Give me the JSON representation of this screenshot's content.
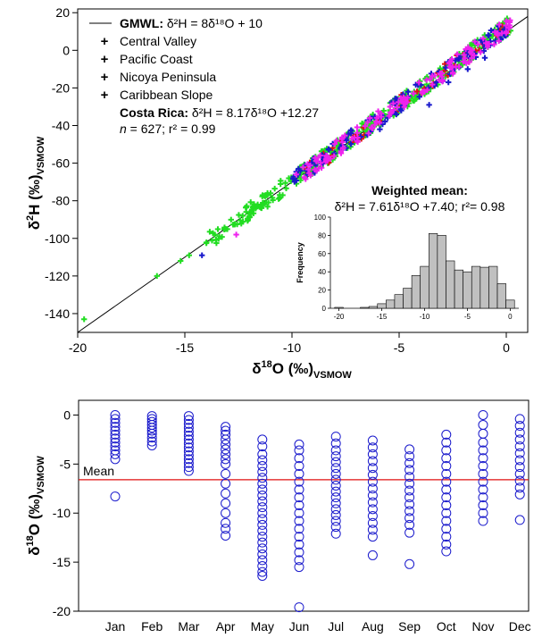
{
  "top_chart": {
    "ylabel_delta": "δ",
    "ylabel_sup": "2",
    "ylabel_main": "H (‰)",
    "ylabel_sub": "VSMOW",
    "xlabel_delta": "δ",
    "xlabel_sup": "18",
    "xlabel_main": "O (‰)",
    "xlabel_sub": "VSMOW",
    "legend": {
      "gmwl_bold": "GMWL:",
      "gmwl_eq": "δ²H = 8δ¹⁸O + 10",
      "central_valley": "Central Valley",
      "pacific_coast": "Pacific Coast",
      "nicoya": "Nicoya Peninsula",
      "caribbean": "Caribbean Slope",
      "costa_rica_bold": "Costa Rica:",
      "costa_rica_eq": "δ²H = 8.17δ¹⁸O +12.27",
      "n_label": "n",
      "stats": " = 627; r² = 0.99"
    },
    "weighted_title": "Weighted mean:",
    "weighted_eq": "δ²H = 7.61δ¹⁸O +7.40; r²= 0.98",
    "inset_ylabel": "Frequency",
    "x_ticks": [
      "-20",
      "-15",
      "-10",
      "-5",
      "0"
    ],
    "y_ticks": [
      "20",
      "0",
      "-20",
      "-40",
      "-60",
      "-80",
      "-100",
      "-120",
      "-140"
    ],
    "inset_x_ticks": [
      "-20",
      "-15",
      "-10",
      "-5",
      "0"
    ],
    "inset_y_ticks": [
      "100",
      "80",
      "60",
      "40",
      "20",
      "0"
    ]
  },
  "bottom_chart": {
    "ylabel_delta": "δ",
    "ylabel_sup": "18",
    "ylabel_main": "O (‰)",
    "ylabel_sub": "VSMOW",
    "mean_label": "Mean",
    "y_ticks": [
      "0",
      "-5",
      "-10",
      "-15",
      "-20"
    ],
    "months": [
      "Jan",
      "Feb",
      "Mar",
      "Apr",
      "May",
      "Jun",
      "Jul",
      "Aug",
      "Sep",
      "Oct",
      "Nov",
      "Dec"
    ]
  },
  "colors": {
    "central_valley": "#22dd22",
    "pacific_coast": "#dd1111",
    "nicoya": "#1a1acc",
    "caribbean": "#ee22ee",
    "open_circle": "#1a1acc",
    "mean_line": "#e01010",
    "histogram_bar": "#c0c0c0"
  },
  "chart_data": [
    {
      "type": "scatter",
      "xlim": [
        -20,
        1
      ],
      "ylim": [
        -150,
        22
      ],
      "reference_line": {
        "name": "GMWL",
        "slope": 8,
        "intercept": 10
      },
      "fit": {
        "name": "Costa Rica",
        "slope": 8.17,
        "intercept": 12.27,
        "n": 627,
        "r2": 0.99
      },
      "series": [
        {
          "name": "Central Valley",
          "x": [
            -19.7,
            -16.3,
            -15.2,
            -14.8,
            -13.1,
            -12.3,
            -11.8,
            -11.0,
            -10.0,
            -9.1,
            -8.2,
            -7.4,
            -6.6,
            -5.6,
            -4.3,
            -3.1,
            -2.2,
            -1.4,
            -0.9,
            -0.5,
            -11.6,
            -13.6,
            -9.6
          ],
          "y": [
            -143,
            -120,
            -112,
            -109,
            -95,
            -88,
            -84,
            -76,
            -68,
            -61,
            -53,
            -47,
            -42,
            -35,
            -22,
            -14,
            -6,
            -1,
            5,
            9,
            -82,
            -98,
            -62
          ]
        },
        {
          "name": "Pacific Coast",
          "x": [
            -9.3,
            -8.1,
            -6.0,
            -4.6,
            -2.4,
            -0.3,
            -7.0,
            -3.0
          ],
          "y": [
            -63,
            -52,
            -38,
            -27,
            -8,
            11,
            -45,
            -14
          ]
        },
        {
          "name": "Nicoya Peninsula",
          "x": [
            -14.2,
            -9.6,
            -8.9,
            -7.6,
            -6.8,
            -5.9,
            -4.9,
            -3.6,
            -2.7,
            -1.8,
            -1.0,
            -0.1,
            -5.2,
            -2.2
          ],
          "y": [
            -109,
            -64,
            -61,
            -52,
            -46,
            -42,
            -32,
            -29,
            -17,
            -10,
            -4,
            8,
            -33,
            -9
          ]
        },
        {
          "name": "Caribbean Slope",
          "x": [
            -12.6,
            -9.8,
            -8.4,
            -7.2,
            -6.3,
            -5.4,
            -4.7,
            -3.9,
            -3.0,
            -2.0,
            -1.2,
            -0.4,
            0.1,
            -1.6
          ],
          "y": [
            -98,
            -66,
            -56,
            -47,
            -41,
            -33,
            -26,
            -22,
            -14,
            -6,
            -1,
            9,
            12,
            0
          ]
        }
      ]
    },
    {
      "type": "bar",
      "title": "Weighted mean:",
      "ylabel": "Frequency",
      "categories": [
        -20,
        -19,
        -18,
        -17,
        -16,
        -15,
        -14,
        -13,
        -12,
        -11,
        -10,
        -9,
        -8,
        -7,
        -6,
        -5,
        -4,
        -3,
        -2,
        -1,
        0
      ],
      "values": [
        1,
        0,
        0,
        1,
        2,
        5,
        9,
        15,
        22,
        36,
        46,
        82,
        80,
        52,
        42,
        40,
        46,
        45,
        46,
        27,
        9
      ],
      "xlim": [
        -21,
        1
      ],
      "ylim": [
        0,
        100
      ]
    },
    {
      "type": "scatter",
      "categories": [
        "Jan",
        "Feb",
        "Mar",
        "Apr",
        "May",
        "Jun",
        "Jul",
        "Aug",
        "Sep",
        "Oct",
        "Nov",
        "Dec"
      ],
      "ylim": [
        -20,
        1.5
      ],
      "mean": -6.6,
      "points": [
        [
          0,
          -0.4,
          -0.8,
          -1.2,
          -1.6,
          -2.0,
          -2.4,
          -2.8,
          -3.2,
          -3.6,
          -4.0,
          -4.5,
          -8.3
        ],
        [
          -0.1,
          -0.4,
          -0.7,
          -1.0,
          -1.3,
          -1.6,
          -1.9,
          -2.3,
          -2.7,
          -3.1
        ],
        [
          -0.1,
          -0.5,
          -0.9,
          -1.3,
          -1.7,
          -2.1,
          -2.5,
          -2.9,
          -3.3,
          -3.7,
          -4.1,
          -4.5,
          -4.9,
          -5.3,
          -5.7
        ],
        [
          -1.2,
          -1.6,
          -2.0,
          -2.5,
          -3.0,
          -3.5,
          -4.0,
          -4.5,
          -5.0,
          -6.0,
          -7.0,
          -8.0,
          -9.0,
          -10.0,
          -11.0,
          -11.6,
          -12.3
        ],
        [
          -2.5,
          -3.2,
          -4.0,
          -4.6,
          -5.2,
          -5.8,
          -6.4,
          -7.0,
          -7.6,
          -8.2,
          -8.8,
          -9.4,
          -10.0,
          -10.6,
          -11.2,
          -11.8,
          -12.4,
          -13.0,
          -13.6,
          -14.2,
          -14.8,
          -15.4,
          -16.0,
          -16.4
        ],
        [
          -3.0,
          -3.6,
          -4.4,
          -5.2,
          -6.0,
          -6.8,
          -7.6,
          -8.4,
          -9.2,
          -10.0,
          -10.8,
          -11.6,
          -12.4,
          -13.2,
          -14.0,
          -14.8,
          -15.5,
          -19.6
        ],
        [
          -2.2,
          -2.9,
          -3.6,
          -4.2,
          -4.8,
          -5.4,
          -6.0,
          -6.6,
          -7.2,
          -7.8,
          -8.4,
          -9.0,
          -9.6,
          -10.2,
          -10.8,
          -11.4,
          -12.1
        ],
        [
          -2.6,
          -3.3,
          -4.0,
          -4.7,
          -5.4,
          -6.1,
          -6.8,
          -7.5,
          -8.2,
          -8.9,
          -9.6,
          -10.3,
          -11.0,
          -11.7,
          -12.4,
          -14.3
        ],
        [
          -3.5,
          -4.2,
          -4.9,
          -5.6,
          -6.3,
          -7.0,
          -7.7,
          -8.4,
          -9.1,
          -9.8,
          -10.5,
          -11.2,
          -12.0,
          -15.2
        ],
        [
          -2.0,
          -2.8,
          -3.6,
          -4.4,
          -5.2,
          -6.0,
          -6.8,
          -7.6,
          -8.4,
          -9.2,
          -10.0,
          -10.8,
          -11.6,
          -12.4,
          -13.2,
          -13.9
        ],
        [
          0,
          -1.0,
          -1.9,
          -2.8,
          -3.6,
          -4.4,
          -5.2,
          -6.0,
          -6.8,
          -7.6,
          -8.4,
          -9.2,
          -10.0,
          -10.8
        ],
        [
          -0.4,
          -1.1,
          -1.8,
          -2.5,
          -3.2,
          -3.9,
          -4.6,
          -5.3,
          -6.0,
          -6.7,
          -7.4,
          -8.1,
          -10.7
        ]
      ]
    }
  ]
}
